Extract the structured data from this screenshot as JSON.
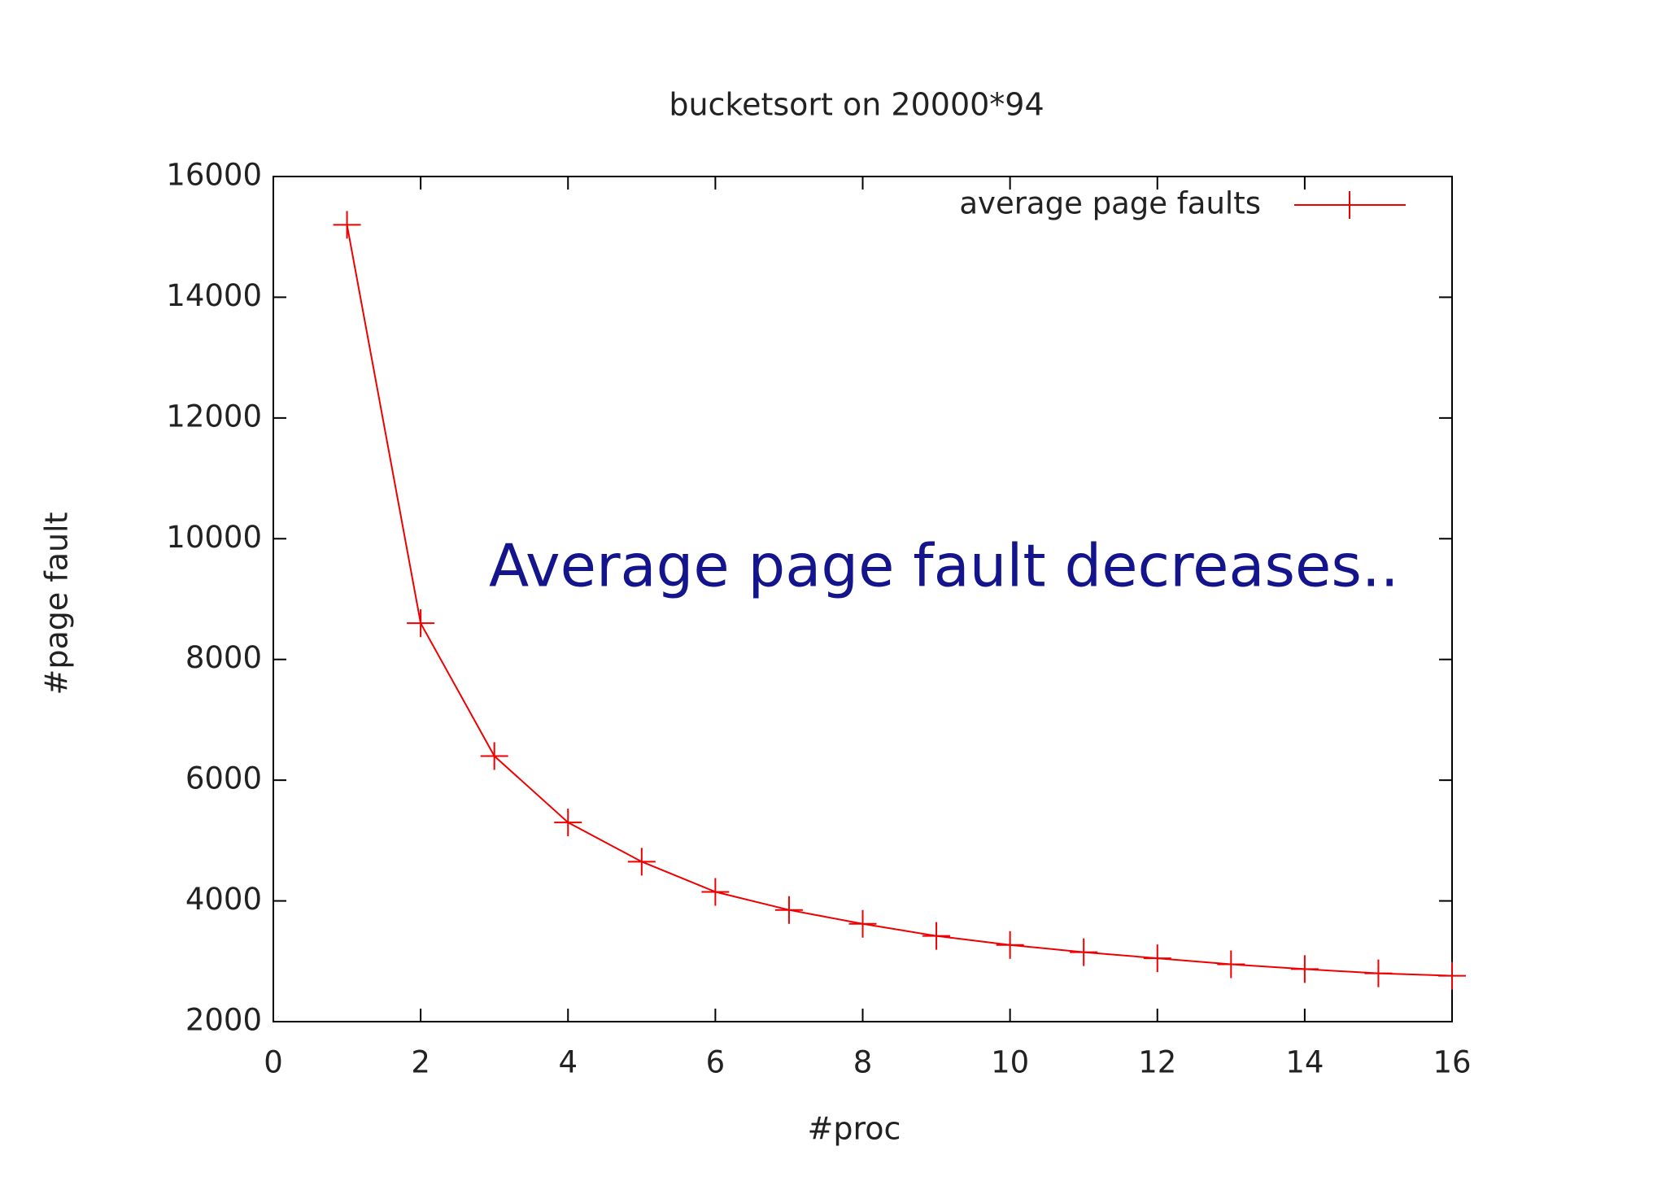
{
  "chart_data": {
    "type": "line",
    "title": "bucketsort on 20000*94",
    "x_label": "#proc",
    "y_label": "#page fault",
    "annotation": "Average page fault decreases..",
    "x": [
      1,
      2,
      3,
      4,
      5,
      6,
      7,
      8,
      9,
      10,
      11,
      12,
      13,
      14,
      15,
      16
    ],
    "series": [
      {
        "name": "average page faults",
        "color": "#ee0000",
        "values": [
          15200,
          8600,
          6400,
          5300,
          4650,
          4150,
          3850,
          3620,
          3420,
          3270,
          3150,
          3050,
          2950,
          2870,
          2800,
          2760
        ]
      }
    ],
    "xlim": [
      0,
      16
    ],
    "xticks": [
      0,
      2,
      4,
      6,
      8,
      10,
      12,
      14,
      16
    ],
    "ylim": [
      2000,
      16000
    ],
    "yticks": [
      2000,
      4000,
      6000,
      8000,
      10000,
      12000,
      14000,
      16000
    ],
    "grid": false,
    "legend_position": "top-right"
  }
}
